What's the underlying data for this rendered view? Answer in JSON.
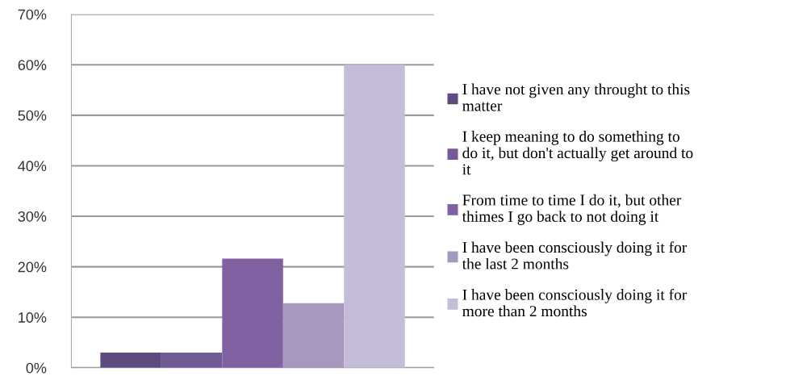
{
  "chart_data": {
    "type": "bar",
    "categories": [
      null
    ],
    "series": [
      {
        "name": "I have not given any throught to this\nmatter",
        "color": "#5f4a7f",
        "values": [
          3
        ]
      },
      {
        "name": "I keep meaning to do something to\ndo it, but don't actually get around to\nit",
        "color": "#725a95",
        "values": [
          3
        ]
      },
      {
        "name": "From time to time I do it, but other\nthimes I go back to not doing it",
        "color": "#8062a3",
        "values": [
          21.6
        ]
      },
      {
        "name": "I have been consciously doing it for\nthe last 2 months",
        "color": "#a698bf",
        "values": [
          12.8
        ]
      },
      {
        "name": "I have been consciously doing it for\nmore than 2 months",
        "color": "#c5bcd8",
        "values": [
          60
        ]
      }
    ],
    "ylim": [
      0,
      70
    ],
    "yticks": [
      {
        "value": 0,
        "label": "0%"
      },
      {
        "value": 10,
        "label": "10%"
      },
      {
        "value": 20,
        "label": "20%"
      },
      {
        "value": 30,
        "label": "30%"
      },
      {
        "value": 40,
        "label": "40%"
      },
      {
        "value": 50,
        "label": "50%"
      },
      {
        "value": 60,
        "label": "60%"
      },
      {
        "value": 70,
        "label": "70%"
      }
    ],
    "grid": "y",
    "legend": "right"
  }
}
